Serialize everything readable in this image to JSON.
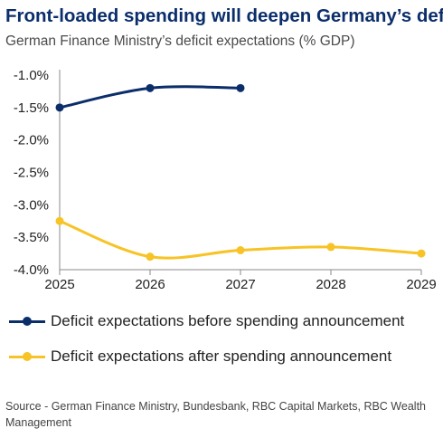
{
  "chart_data": {
    "type": "line",
    "title": "Front-loaded spending will deepen Germany’s deficit",
    "subtitle": "German Finance Ministry’s deficit expectations (% GDP)",
    "x": [
      "2025",
      "2026",
      "2027",
      "2028",
      "2029"
    ],
    "ylim": [
      -4.0,
      -1.0
    ],
    "y_ticks": [
      -1.0,
      -1.5,
      -2.0,
      -2.5,
      -3.0,
      -3.5,
      -4.0
    ],
    "y_tick_labels": [
      "-1.0%",
      "-1.5%",
      "-2.0%",
      "-2.5%",
      "-3.0%",
      "-3.5%",
      "-4.0%"
    ],
    "grid": false,
    "legend_position": "bottom",
    "series": [
      {
        "name": "Deficit expectations before spending announcement",
        "color": "#0b2e6b",
        "values": [
          -1.5,
          -1.2,
          -1.2,
          null,
          null
        ]
      },
      {
        "name": "Deficit expectations after spending announcement",
        "color": "#f7c325",
        "values": [
          -3.25,
          -3.8,
          -3.7,
          -3.65,
          -3.75
        ]
      }
    ],
    "source": "Source - German Finance Ministry, Bundesbank, RBC Capital Markets, RBC Wealth Management"
  }
}
